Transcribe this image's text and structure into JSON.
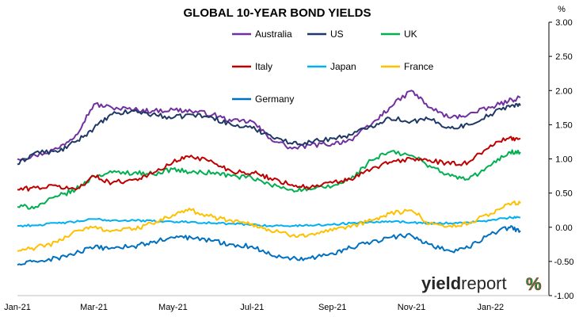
{
  "chart_data": {
    "type": "line",
    "title": "GLOBAL 10-YEAR BOND YIELDS",
    "unit_label": "%",
    "xlabel": "",
    "ylabel": "",
    "x_tick_labels": [
      "Jan-21",
      "Mar-21",
      "May-21",
      "Jul-21",
      "Sep-21",
      "Nov-21",
      "Jan-22"
    ],
    "x": [
      "2021-01-01",
      "2021-01-15",
      "2021-02-01",
      "2021-02-15",
      "2021-03-01",
      "2021-03-15",
      "2021-04-01",
      "2021-04-15",
      "2021-05-01",
      "2021-05-15",
      "2021-06-01",
      "2021-06-15",
      "2021-07-01",
      "2021-07-15",
      "2021-08-01",
      "2021-08-15",
      "2021-09-01",
      "2021-09-15",
      "2021-10-01",
      "2021-10-15",
      "2021-11-01",
      "2021-11-15",
      "2021-12-01",
      "2021-12-15",
      "2022-01-01",
      "2022-01-15",
      "2022-01-24"
    ],
    "ylim": [
      -1.0,
      3.0
    ],
    "y_ticks": [
      -1.0,
      -0.5,
      0.0,
      0.5,
      1.0,
      1.5,
      2.0,
      2.5,
      3.0
    ],
    "y_tick_labels": [
      "-1.00",
      "-0.50",
      "0.00",
      "0.50",
      "1.00",
      "1.50",
      "2.00",
      "2.50",
      "3.00"
    ],
    "grid": false,
    "legend_position": "top",
    "series": [
      {
        "name": "Australia",
        "color": "#7030a0",
        "values": [
          1.0,
          1.05,
          1.15,
          1.35,
          1.8,
          1.75,
          1.72,
          1.7,
          1.72,
          1.7,
          1.65,
          1.55,
          1.55,
          1.3,
          1.15,
          1.2,
          1.22,
          1.28,
          1.5,
          1.75,
          2.0,
          1.75,
          1.6,
          1.65,
          1.75,
          1.85,
          1.9
        ]
      },
      {
        "name": "US",
        "color": "#1f3864",
        "values": [
          0.92,
          1.1,
          1.1,
          1.25,
          1.45,
          1.65,
          1.7,
          1.65,
          1.6,
          1.65,
          1.6,
          1.5,
          1.45,
          1.35,
          1.22,
          1.25,
          1.3,
          1.35,
          1.48,
          1.6,
          1.55,
          1.58,
          1.45,
          1.5,
          1.65,
          1.78,
          1.78
        ]
      },
      {
        "name": "UK",
        "color": "#00b050",
        "values": [
          0.3,
          0.3,
          0.45,
          0.55,
          0.75,
          0.8,
          0.8,
          0.78,
          0.85,
          0.8,
          0.8,
          0.75,
          0.72,
          0.62,
          0.55,
          0.55,
          0.6,
          0.7,
          0.98,
          1.1,
          1.05,
          0.9,
          0.75,
          0.7,
          0.9,
          1.1,
          1.1
        ]
      },
      {
        "name": "Italy",
        "color": "#c00000",
        "values": [
          0.55,
          0.58,
          0.6,
          0.55,
          0.75,
          0.65,
          0.7,
          0.78,
          0.95,
          1.05,
          0.95,
          0.82,
          0.8,
          0.72,
          0.62,
          0.58,
          0.65,
          0.7,
          0.85,
          0.95,
          1.0,
          0.98,
          0.92,
          0.95,
          1.2,
          1.3,
          1.3
        ]
      },
      {
        "name": "Japan",
        "color": "#00b0f0",
        "values": [
          0.02,
          0.03,
          0.06,
          0.08,
          0.12,
          0.1,
          0.1,
          0.09,
          0.08,
          0.08,
          0.06,
          0.05,
          0.04,
          0.02,
          0.02,
          0.03,
          0.04,
          0.06,
          0.08,
          0.09,
          0.07,
          0.06,
          0.06,
          0.07,
          0.1,
          0.14,
          0.14
        ]
      },
      {
        "name": "France",
        "color": "#ffc000",
        "values": [
          -0.35,
          -0.3,
          -0.22,
          -0.05,
          0.0,
          -0.05,
          -0.02,
          0.05,
          0.18,
          0.25,
          0.15,
          0.1,
          0.05,
          -0.05,
          -0.12,
          -0.1,
          -0.05,
          0.0,
          0.1,
          0.2,
          0.25,
          0.05,
          0.02,
          0.05,
          0.2,
          0.35,
          0.35
        ]
      },
      {
        "name": "Germany",
        "color": "#0070c0",
        "values": [
          -0.55,
          -0.5,
          -0.45,
          -0.38,
          -0.3,
          -0.3,
          -0.28,
          -0.22,
          -0.15,
          -0.15,
          -0.2,
          -0.25,
          -0.28,
          -0.4,
          -0.45,
          -0.45,
          -0.38,
          -0.3,
          -0.22,
          -0.15,
          -0.12,
          -0.25,
          -0.35,
          -0.3,
          -0.1,
          0.0,
          -0.05
        ]
      }
    ]
  },
  "watermark": {
    "text_part1": "yield",
    "text_part2": "report",
    "symbol": "%",
    "color_dark": "#262626",
    "color_green": "#00b050",
    "color_red": "#c00000"
  }
}
